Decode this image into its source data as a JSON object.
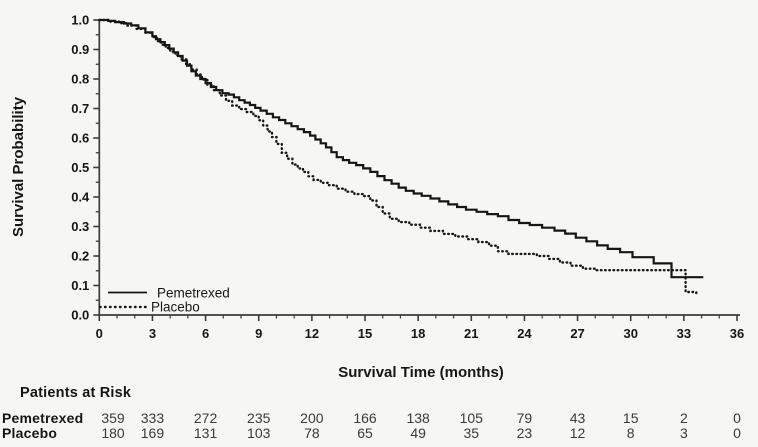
{
  "chart_data": {
    "type": "line",
    "subtype": "kaplan-meier-step",
    "title": "",
    "xlabel": "Survival Time (months)",
    "ylabel": "Survival Probability",
    "xlim": [
      0,
      36
    ],
    "ylim": [
      0.0,
      1.0
    ],
    "x_tick_major_step": 3,
    "x_tick_minor_step": 1,
    "y_tick_major_step": 0.1,
    "y_tick_minor_step": 0.05,
    "x_tick_labels": [
      "0",
      "3",
      "6",
      "9",
      "12",
      "15",
      "18",
      "21",
      "24",
      "27",
      "30",
      "33",
      "36"
    ],
    "y_tick_labels": [
      "0.0",
      "0.1",
      "0.2",
      "0.3",
      "0.4",
      "0.5",
      "0.6",
      "0.7",
      "0.8",
      "0.9",
      "1.0"
    ],
    "grid": false,
    "legend": {
      "position": "lower-left",
      "entries": [
        {
          "label": "Pemetrexed",
          "style": "solid"
        },
        {
          "label": "Placebo",
          "style": "dotted"
        }
      ]
    },
    "colors": {
      "curve": "#161616",
      "axis": "#3c3c3c",
      "text": "#161616"
    },
    "series": [
      {
        "name": "Pemetrexed",
        "style": "solid",
        "points": [
          [
            0,
            1.0
          ],
          [
            0.5,
            0.997
          ],
          [
            0.9,
            0.993
          ],
          [
            1.4,
            0.988
          ],
          [
            1.8,
            0.982
          ],
          [
            2.2,
            0.972
          ],
          [
            2.6,
            0.958
          ],
          [
            3.0,
            0.945
          ],
          [
            3.2,
            0.935
          ],
          [
            3.45,
            0.925
          ],
          [
            3.7,
            0.915
          ],
          [
            3.95,
            0.903
          ],
          [
            4.2,
            0.89
          ],
          [
            4.45,
            0.878
          ],
          [
            4.7,
            0.862
          ],
          [
            4.95,
            0.845
          ],
          [
            5.2,
            0.826
          ],
          [
            5.45,
            0.812
          ],
          [
            5.7,
            0.8
          ],
          [
            6.0,
            0.786
          ],
          [
            6.3,
            0.773
          ],
          [
            6.6,
            0.762
          ],
          [
            6.95,
            0.752
          ],
          [
            7.3,
            0.747
          ],
          [
            7.6,
            0.738
          ],
          [
            7.9,
            0.728
          ],
          [
            8.2,
            0.72
          ],
          [
            8.5,
            0.712
          ],
          [
            8.8,
            0.702
          ],
          [
            9.1,
            0.693
          ],
          [
            9.45,
            0.682
          ],
          [
            9.8,
            0.67
          ],
          [
            10.15,
            0.661
          ],
          [
            10.5,
            0.65
          ],
          [
            10.85,
            0.64
          ],
          [
            11.2,
            0.63
          ],
          [
            11.55,
            0.62
          ],
          [
            11.9,
            0.608
          ],
          [
            12.2,
            0.595
          ],
          [
            12.5,
            0.582
          ],
          [
            12.8,
            0.568
          ],
          [
            13.1,
            0.552
          ],
          [
            13.4,
            0.535
          ],
          [
            13.75,
            0.525
          ],
          [
            14.1,
            0.516
          ],
          [
            14.5,
            0.508
          ],
          [
            14.9,
            0.497
          ],
          [
            15.3,
            0.485
          ],
          [
            15.7,
            0.471
          ],
          [
            16.1,
            0.457
          ],
          [
            16.5,
            0.445
          ],
          [
            16.9,
            0.432
          ],
          [
            17.3,
            0.421
          ],
          [
            17.75,
            0.412
          ],
          [
            18.2,
            0.404
          ],
          [
            18.7,
            0.395
          ],
          [
            19.2,
            0.385
          ],
          [
            19.7,
            0.375
          ],
          [
            20.2,
            0.366
          ],
          [
            20.7,
            0.357
          ],
          [
            21.3,
            0.35
          ],
          [
            21.9,
            0.342
          ],
          [
            22.5,
            0.335
          ],
          [
            23.1,
            0.322
          ],
          [
            23.7,
            0.312
          ],
          [
            24.3,
            0.305
          ],
          [
            25.0,
            0.296
          ],
          [
            25.7,
            0.286
          ],
          [
            26.3,
            0.276
          ],
          [
            26.9,
            0.262
          ],
          [
            27.5,
            0.25
          ],
          [
            28.1,
            0.236
          ],
          [
            28.7,
            0.224
          ],
          [
            29.4,
            0.213
          ],
          [
            30.1,
            0.196
          ],
          [
            31.3,
            0.175
          ],
          [
            32.3,
            0.128
          ],
          [
            34.1,
            0.128
          ]
        ]
      },
      {
        "name": "Placebo",
        "style": "dotted",
        "points": [
          [
            0,
            1.0
          ],
          [
            0.6,
            0.995
          ],
          [
            1.1,
            0.989
          ],
          [
            1.6,
            0.981
          ],
          [
            2.1,
            0.97
          ],
          [
            2.6,
            0.957
          ],
          [
            3.0,
            0.942
          ],
          [
            3.25,
            0.928
          ],
          [
            3.5,
            0.916
          ],
          [
            3.75,
            0.905
          ],
          [
            4.0,
            0.893
          ],
          [
            4.3,
            0.88
          ],
          [
            4.6,
            0.866
          ],
          [
            4.9,
            0.85
          ],
          [
            5.2,
            0.832
          ],
          [
            5.5,
            0.815
          ],
          [
            5.8,
            0.798
          ],
          [
            6.1,
            0.78
          ],
          [
            6.45,
            0.762
          ],
          [
            6.8,
            0.744
          ],
          [
            7.15,
            0.726
          ],
          [
            7.5,
            0.71
          ],
          [
            7.9,
            0.698
          ],
          [
            8.3,
            0.688
          ],
          [
            8.7,
            0.675
          ],
          [
            9.0,
            0.66
          ],
          [
            9.25,
            0.642
          ],
          [
            9.5,
            0.622
          ],
          [
            9.75,
            0.603
          ],
          [
            10.0,
            0.58
          ],
          [
            10.3,
            0.55
          ],
          [
            10.6,
            0.53
          ],
          [
            10.9,
            0.51
          ],
          [
            11.2,
            0.497
          ],
          [
            11.5,
            0.485
          ],
          [
            11.8,
            0.47
          ],
          [
            12.1,
            0.458
          ],
          [
            12.5,
            0.448
          ],
          [
            12.9,
            0.44
          ],
          [
            13.4,
            0.428
          ],
          [
            13.9,
            0.418
          ],
          [
            14.4,
            0.41
          ],
          [
            14.9,
            0.403
          ],
          [
            15.3,
            0.388
          ],
          [
            15.65,
            0.366
          ],
          [
            16.0,
            0.344
          ],
          [
            16.4,
            0.326
          ],
          [
            16.9,
            0.315
          ],
          [
            17.5,
            0.306
          ],
          [
            18.1,
            0.296
          ],
          [
            18.7,
            0.285
          ],
          [
            19.4,
            0.275
          ],
          [
            20.1,
            0.266
          ],
          [
            20.8,
            0.257
          ],
          [
            21.4,
            0.247
          ],
          [
            22.0,
            0.235
          ],
          [
            22.5,
            0.216
          ],
          [
            23.1,
            0.207
          ],
          [
            24.7,
            0.2
          ],
          [
            25.4,
            0.19
          ],
          [
            26.0,
            0.178
          ],
          [
            26.6,
            0.167
          ],
          [
            27.3,
            0.157
          ],
          [
            28.0,
            0.152
          ],
          [
            33.05,
            0.152
          ],
          [
            33.1,
            0.078
          ],
          [
            33.7,
            0.068
          ]
        ]
      }
    ]
  },
  "risk_table": {
    "title": "Patients at Risk",
    "time_points": [
      0,
      3,
      6,
      9,
      12,
      15,
      18,
      21,
      24,
      27,
      30,
      33,
      36
    ],
    "rows": [
      {
        "label": "Pemetrexed",
        "counts": [
          359,
          333,
          272,
          235,
          200,
          166,
          138,
          105,
          79,
          43,
          15,
          2,
          0
        ]
      },
      {
        "label": "Placebo",
        "counts": [
          180,
          169,
          131,
          103,
          78,
          65,
          49,
          35,
          23,
          12,
          8,
          3,
          0
        ]
      }
    ]
  }
}
